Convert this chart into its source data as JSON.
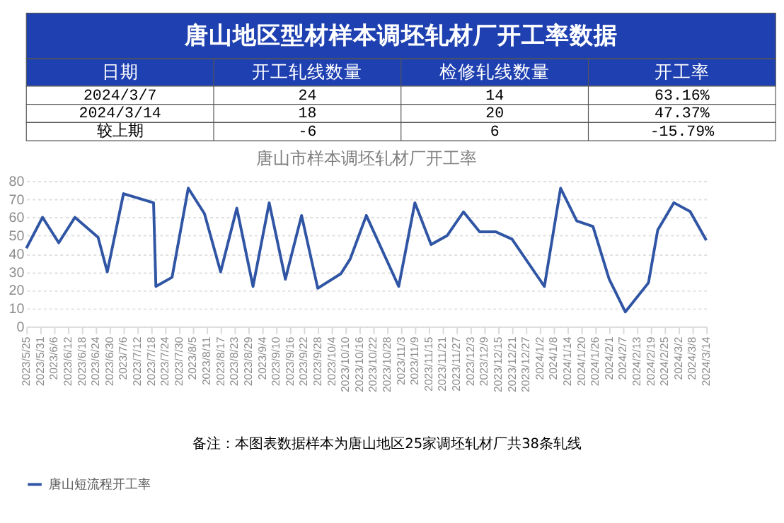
{
  "chart_data": [
    {
      "type": "other",
      "title": "唐山地区型材样本调坯轧材厂开工率数据",
      "color": "#1f40b0",
      "annotations": [
        "日期",
        "开工轧线数量",
        "检修轧线数量",
        "开工率",
        "2024/3/7",
        "24",
        "14",
        "63.16%",
        "2024/3/14",
        "18",
        "20",
        "47.37%",
        "较上期",
        "-6",
        "6",
        "-15.79%"
      ]
    },
    {
      "type": "line",
      "title": "唐山市样本调坯轧材厂开工率",
      "x": [
        "2023-05-25",
        "2023-06-01",
        "2023-06-08",
        "2023-06-15",
        "2023-06-25",
        "2023-06-29",
        "2023-07-06",
        "2023-07-19",
        "2023-07-20",
        "2023-07-27",
        "2023-08-03",
        "2023-08-10",
        "2023-08-17",
        "2023-08-24",
        "2023-08-31",
        "2023-09-07",
        "2023-09-14",
        "2023-09-21",
        "2023-09-28",
        "2023-10-08",
        "2023-10-12",
        "2023-10-19",
        "2023-11-02",
        "2023-11-09",
        "2023-11-16",
        "2023-11-23",
        "2023-11-30",
        "2023-12-07",
        "2023-12-14",
        "2023-12-21",
        "2024-01-04",
        "2024-01-11",
        "2024-01-18",
        "2024-01-25",
        "2024-02-01",
        "2024-02-08",
        "2024-02-18",
        "2024-02-22",
        "2024-02-29",
        "2024-03-07",
        "2024-03-14"
      ],
      "series": [
        {
          "name": "唐山短流程开工率",
          "color": "#2f55a4",
          "values": [
            43,
            60,
            46,
            60,
            49,
            30,
            73,
            68,
            22,
            27,
            76,
            62,
            30,
            65,
            22,
            68,
            26,
            61,
            21,
            29,
            37,
            61,
            22,
            68,
            45,
            50,
            63,
            52,
            52,
            48,
            22,
            76,
            58,
            55,
            26,
            8,
            24,
            53,
            68,
            63.16,
            47.37
          ]
        }
      ],
      "xlim": [
        "2023-05-25",
        "2024-03-14"
      ],
      "xticks": [
        {
          "value": "2023-05-25",
          "label": "2023/5/25"
        },
        {
          "value": "2023-05-31",
          "label": "2023/5/31"
        },
        {
          "value": "2023-06-06",
          "label": "2023/6/6"
        },
        {
          "value": "2023-06-12",
          "label": "2023/6/12"
        },
        {
          "value": "2023-06-18",
          "label": "2023/6/18"
        },
        {
          "value": "2023-06-24",
          "label": "2023/6/24"
        },
        {
          "value": "2023-06-30",
          "label": "2023/6/30"
        },
        {
          "value": "2023-07-06",
          "label": "2023/7/6"
        },
        {
          "value": "2023-07-12",
          "label": "2023/7/12"
        },
        {
          "value": "2023-07-18",
          "label": "2023/7/18"
        },
        {
          "value": "2023-07-24",
          "label": "2023/7/24"
        },
        {
          "value": "2023-07-30",
          "label": "2023/7/30"
        },
        {
          "value": "2023-08-05",
          "label": "2023/8/5"
        },
        {
          "value": "2023-08-11",
          "label": "2023/8/11"
        },
        {
          "value": "2023-08-17",
          "label": "2023/8/17"
        },
        {
          "value": "2023-08-23",
          "label": "2023/8/23"
        },
        {
          "value": "2023-08-29",
          "label": "2023/8/29"
        },
        {
          "value": "2023-09-04",
          "label": "2023/9/4"
        },
        {
          "value": "2023-09-10",
          "label": "2023/9/10"
        },
        {
          "value": "2023-09-16",
          "label": "2023/9/16"
        },
        {
          "value": "2023-09-22",
          "label": "2023/9/22"
        },
        {
          "value": "2023-09-28",
          "label": "2023/9/28"
        },
        {
          "value": "2023-10-04",
          "label": "2023/10/4"
        },
        {
          "value": "2023-10-10",
          "label": "2023/10/10"
        },
        {
          "value": "2023-10-16",
          "label": "2023/10/16"
        },
        {
          "value": "2023-10-22",
          "label": "2023/10/22"
        },
        {
          "value": "2023-10-28",
          "label": "2023/10/28"
        },
        {
          "value": "2023-11-03",
          "label": "2023/11/3"
        },
        {
          "value": "2023-11-09",
          "label": "2023/11/9"
        },
        {
          "value": "2023-11-15",
          "label": "2023/11/15"
        },
        {
          "value": "2023-11-21",
          "label": "2023/11/21"
        },
        {
          "value": "2023-11-27",
          "label": "2023/11/27"
        },
        {
          "value": "2023-12-03",
          "label": "2023/12/3"
        },
        {
          "value": "2023-12-09",
          "label": "2023/12/9"
        },
        {
          "value": "2023-12-15",
          "label": "2023/12/15"
        },
        {
          "value": "2023-12-21",
          "label": "2023/12/21"
        },
        {
          "value": "2023-12-27",
          "label": "2023/12/27"
        },
        {
          "value": "2024-01-02",
          "label": "2024/1/2"
        },
        {
          "value": "2024-01-08",
          "label": "2024/1/8"
        },
        {
          "value": "2024-01-14",
          "label": "2024/1/14"
        },
        {
          "value": "2024-01-20",
          "label": "2024/1/20"
        },
        {
          "value": "2024-01-26",
          "label": "2024/1/26"
        },
        {
          "value": "2024-02-01",
          "label": "2024/2/1"
        },
        {
          "value": "2024-02-07",
          "label": "2024/2/7"
        },
        {
          "value": "2024-02-13",
          "label": "2024/2/13"
        },
        {
          "value": "2024-02-19",
          "label": "2024/2/19"
        },
        {
          "value": "2024-02-25",
          "label": "2024/2/25"
        },
        {
          "value": "2024-03-02",
          "label": "2024/3/2"
        },
        {
          "value": "2024-03-08",
          "label": "2024/3/8"
        },
        {
          "value": "2024-03-14",
          "label": "2024/3/14"
        }
      ],
      "ylim": [
        0,
        80
      ],
      "yticks": [
        0,
        10,
        20,
        30,
        40,
        50,
        60,
        70,
        80
      ],
      "grid": "y",
      "legend": "bottom",
      "marker": "none",
      "line_style": "solid",
      "annotations": [
        "备注：本图表数据样本为唐山地区25家调坯轧材厂共38条轧线"
      ]
    }
  ]
}
